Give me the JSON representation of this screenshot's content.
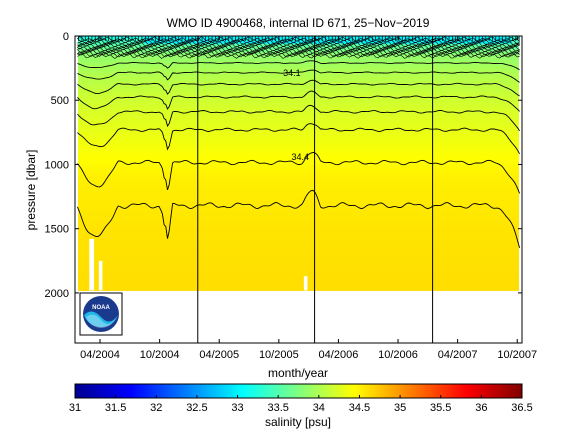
{
  "chart_data": [
    {
      "type": "heatmap",
      "title": "WMO ID 4900468, internal ID 671, 25−Nov−2019",
      "xlabel": "month/year",
      "ylabel": "pressure [dbar]",
      "x_ticks": [
        "04/2004",
        "10/2004",
        "04/2005",
        "10/2005",
        "04/2006",
        "10/2006",
        "04/2007",
        "10/2007"
      ],
      "x_tick_values": [
        2004.25,
        2004.75,
        2005.25,
        2005.75,
        2006.25,
        2006.75,
        2007.25,
        2007.75
      ],
      "xlim": [
        2004.04,
        2007.79
      ],
      "y_ticks": [
        0,
        500,
        1000,
        1500,
        2000
      ],
      "ylim": [
        0,
        2390
      ],
      "y_reversed": true,
      "grid": false,
      "contour_labels": [
        {
          "text": "34.1",
          "x": 2005.86,
          "y": 310
        },
        {
          "text": "34.4",
          "x": 2005.93,
          "y": 965
        }
      ],
      "vertical_lines_x": [
        2005.07,
        2006.05,
        2007.04
      ],
      "data_max_depth": 1980,
      "salinity_levels": [
        {
          "p": 0,
          "s": 33.1
        },
        {
          "p": 60,
          "s": 33.5
        },
        {
          "p": 150,
          "s": 33.85
        },
        {
          "p": 300,
          "s": 34.02
        },
        {
          "p": 500,
          "s": 34.18
        },
        {
          "p": 800,
          "s": 34.35
        },
        {
          "p": 1100,
          "s": 34.52
        },
        {
          "p": 1500,
          "s": 34.58
        },
        {
          "p": 2000,
          "s": 34.62
        }
      ],
      "contour_depths": [
        210,
        285,
        375,
        475,
        590,
        730,
        985,
        1320
      ],
      "logo": "noaa-logo"
    },
    {
      "type": "colorbar",
      "xlabel": "salinity [psu]",
      "ticks": [
        "31",
        "31.5",
        "32",
        "32.5",
        "33",
        "33.5",
        "34",
        "34.5",
        "35",
        "35.5",
        "36",
        "36.5"
      ],
      "range": [
        31,
        36.5
      ],
      "colormap": "jet"
    }
  ]
}
